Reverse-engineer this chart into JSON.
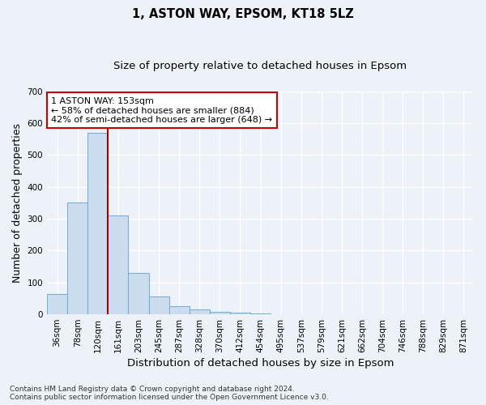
{
  "title1": "1, ASTON WAY, EPSOM, KT18 5LZ",
  "title2": "Size of property relative to detached houses in Epsom",
  "xlabel": "Distribution of detached houses by size in Epsom",
  "ylabel": "Number of detached properties",
  "bar_color": "#ccddf0",
  "bar_edge_color": "#7aaed4",
  "bar_labels": [
    "36sqm",
    "78sqm",
    "120sqm",
    "161sqm",
    "203sqm",
    "245sqm",
    "287sqm",
    "328sqm",
    "370sqm",
    "412sqm",
    "454sqm",
    "495sqm",
    "537sqm",
    "579sqm",
    "621sqm",
    "662sqm",
    "704sqm",
    "746sqm",
    "788sqm",
    "829sqm",
    "871sqm"
  ],
  "bar_values": [
    65,
    350,
    570,
    310,
    130,
    55,
    25,
    15,
    8,
    4,
    2,
    1,
    1,
    0,
    0,
    0,
    0,
    0,
    0,
    0,
    0
  ],
  "vline_color": "#aa0000",
  "annotation_line1": "1 ASTON WAY: 153sqm",
  "annotation_line2": "← 58% of detached houses are smaller (884)",
  "annotation_line3": "42% of semi-detached houses are larger (648) →",
  "annotation_box_color": "#ffffff",
  "annotation_edge_color": "#cc0000",
  "ylim": [
    0,
    700
  ],
  "yticks": [
    0,
    100,
    200,
    300,
    400,
    500,
    600,
    700
  ],
  "footnote": "Contains HM Land Registry data © Crown copyright and database right 2024.\nContains public sector information licensed under the Open Government Licence v3.0.",
  "bg_color": "#edf2f9",
  "grid_color": "#ffffff",
  "title_fontsize": 10.5,
  "subtitle_fontsize": 9.5,
  "axis_label_fontsize": 9,
  "tick_fontsize": 7.5,
  "annotation_fontsize": 8,
  "footnote_fontsize": 6.5
}
